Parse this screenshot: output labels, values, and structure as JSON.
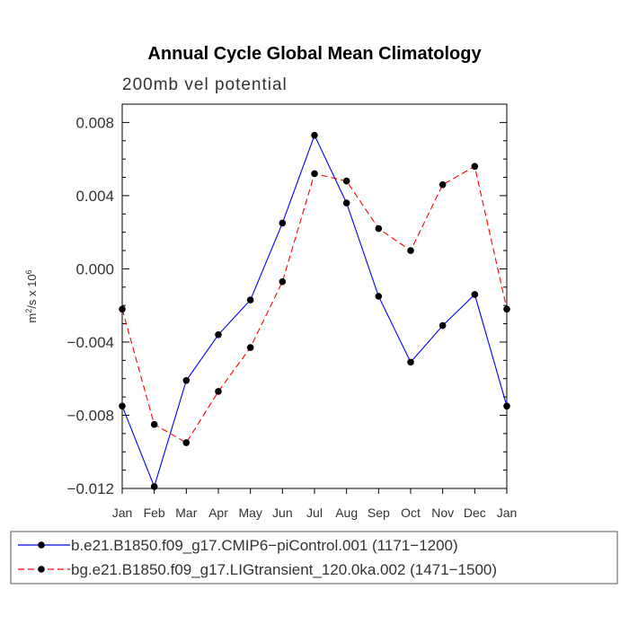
{
  "chart_data": {
    "type": "line",
    "title": "Annual Cycle Global Mean Climatology",
    "subtitle": "200mb vel potential",
    "ylabel_base": "m",
    "ylabel_mid": "/s x 10",
    "ylabel_exp1": "2",
    "ylabel_exp2": "6",
    "xlabel": "",
    "categories": [
      "Jan",
      "Feb",
      "Mar",
      "Apr",
      "May",
      "Jun",
      "Jul",
      "Aug",
      "Sep",
      "Oct",
      "Nov",
      "Dec",
      "Jan"
    ],
    "ylim": [
      -0.012,
      0.009
    ],
    "yticks": [
      -0.012,
      -0.008,
      -0.004,
      0.0,
      0.004,
      0.008
    ],
    "ytick_labels": [
      "−0.012",
      "−0.008",
      "−0.004",
      "0.000",
      "0.004",
      "0.008"
    ],
    "series": [
      {
        "name": "b.e21.B1850.f09_g17.CMIP6−piControl.001 (1171−1200)",
        "color": "#0000ff",
        "dash": "solid",
        "values": [
          -0.0075,
          -0.0119,
          -0.0061,
          -0.0036,
          -0.0017,
          0.0025,
          0.0073,
          0.0036,
          -0.0015,
          -0.0051,
          -0.0031,
          -0.0014,
          -0.0075
        ]
      },
      {
        "name": "bg.e21.B1850.f09_g17.LIGtransient_120.0ka.002 (1471−1500)",
        "color": "#ff0000",
        "dash": "dashed",
        "values": [
          -0.0022,
          -0.0085,
          -0.0095,
          -0.0067,
          -0.0043,
          -0.0007,
          0.0052,
          0.0048,
          0.0022,
          0.001,
          0.0046,
          0.0056,
          -0.0022
        ]
      }
    ],
    "grid": false,
    "legend_position": "bottom"
  }
}
